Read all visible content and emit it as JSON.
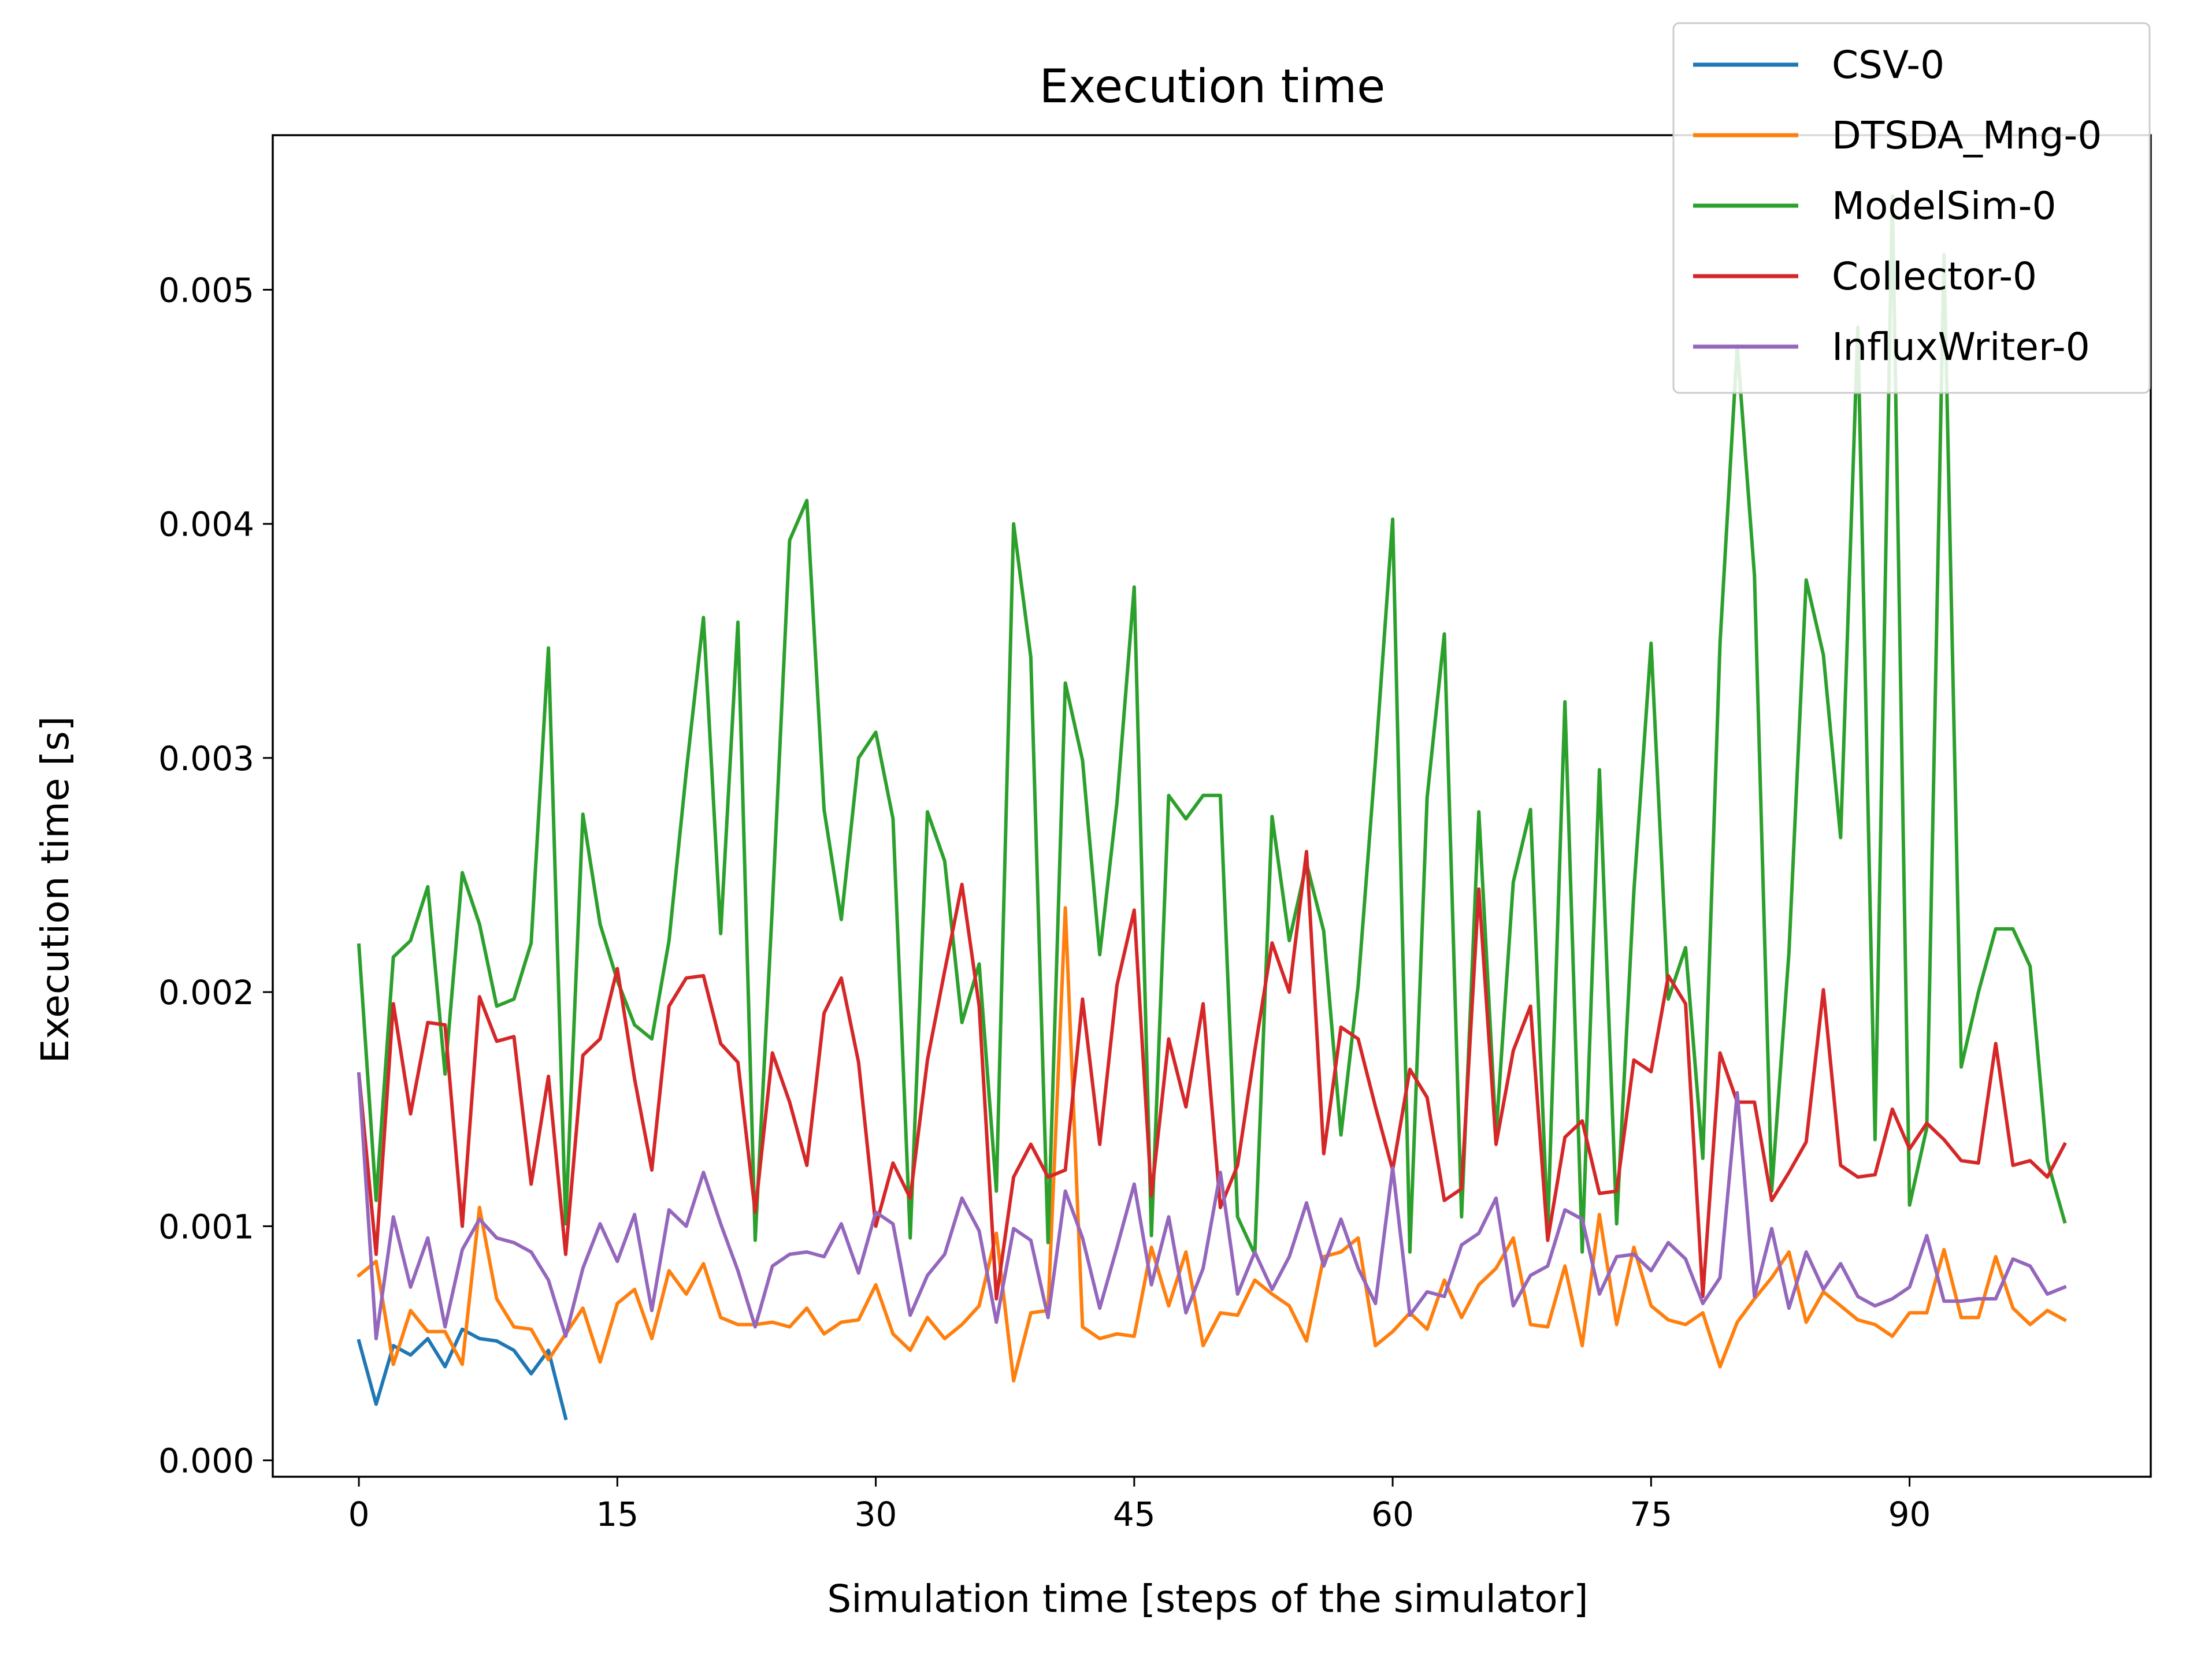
{
  "chart_data": {
    "type": "line",
    "title": "Execution time",
    "xlabel": "Simulation time [steps of the simulator]",
    "ylabel": "Execution time [s]",
    "xlim": [
      -5,
      104
    ],
    "ylim": [
      -7e-05,
      0.00566
    ],
    "xticks": [
      0,
      15,
      30,
      45,
      60,
      75,
      90
    ],
    "xtick_labels": [
      "0",
      "15",
      "30",
      "45",
      "60",
      "75",
      "90"
    ],
    "yticks": [
      0.0,
      0.001,
      0.002,
      0.003,
      0.004,
      0.005
    ],
    "ytick_labels": [
      "0.000",
      "0.001",
      "0.002",
      "0.003",
      "0.004",
      "0.005"
    ],
    "grid": false,
    "legend_position": "top-right",
    "series": [
      {
        "name": "CSV-0",
        "color": "#1f77b4",
        "values": [
          0.00051,
          0.00024,
          0.00049,
          0.00045,
          0.00052,
          0.0004,
          0.00056,
          0.00052,
          0.00051,
          0.00047,
          0.00037,
          0.00047,
          0.00018
        ]
      },
      {
        "name": "DTSDA_Mng-0",
        "color": "#ff7f0e",
        "values": [
          0.00079,
          0.00085,
          0.00041,
          0.00064,
          0.00055,
          0.00055,
          0.00041,
          0.00108,
          0.00069,
          0.00057,
          0.00056,
          0.00043,
          0.00054,
          0.00065,
          0.00042,
          0.00067,
          0.00073,
          0.00052,
          0.00081,
          0.00071,
          0.00084,
          0.00061,
          0.00058,
          0.00058,
          0.00059,
          0.00057,
          0.00065,
          0.00054,
          0.00059,
          0.0006,
          0.00075,
          0.00054,
          0.00047,
          0.00061,
          0.00052,
          0.00058,
          0.00066,
          0.00097,
          0.00034,
          0.00063,
          0.00064,
          0.00236,
          0.00057,
          0.00052,
          0.00054,
          0.00053,
          0.00091,
          0.00066,
          0.00089,
          0.00049,
          0.00063,
          0.00062,
          0.00077,
          0.00071,
          0.00066,
          0.00051,
          0.00087,
          0.00089,
          0.00095,
          0.00049,
          0.00055,
          0.00063,
          0.00056,
          0.00077,
          0.00061,
          0.00075,
          0.00082,
          0.00095,
          0.00058,
          0.00057,
          0.00083,
          0.00049,
          0.00105,
          0.00058,
          0.00091,
          0.00066,
          0.0006,
          0.00058,
          0.00063,
          0.0004,
          0.00059,
          0.00069,
          0.00078,
          0.00089,
          0.00059,
          0.00072,
          0.00066,
          0.0006,
          0.00058,
          0.00053,
          0.00063,
          0.00063,
          0.0009,
          0.00061,
          0.00061,
          0.00087,
          0.00065,
          0.00058,
          0.00064,
          0.0006
        ]
      },
      {
        "name": "ModelSim-0",
        "color": "#2ca02c",
        "values": [
          0.0022,
          0.00111,
          0.00215,
          0.00222,
          0.00245,
          0.00165,
          0.00251,
          0.00229,
          0.00194,
          0.00197,
          0.00221,
          0.00347,
          0.00101,
          0.00276,
          0.00229,
          0.00205,
          0.00186,
          0.0018,
          0.00222,
          0.00294,
          0.0036,
          0.00225,
          0.00358,
          0.00094,
          0.00237,
          0.00393,
          0.0041,
          0.00278,
          0.00231,
          0.003,
          0.00311,
          0.00274,
          0.00095,
          0.00277,
          0.00256,
          0.00187,
          0.00212,
          0.00115,
          0.004,
          0.00343,
          0.00093,
          0.00332,
          0.00299,
          0.00216,
          0.00281,
          0.00373,
          0.00096,
          0.00284,
          0.00274,
          0.00284,
          0.00284,
          0.00104,
          0.00088,
          0.00275,
          0.00222,
          0.00255,
          0.00226,
          0.00139,
          0.00203,
          0.00299,
          0.00402,
          0.00089,
          0.00283,
          0.00353,
          0.00104,
          0.00277,
          0.00139,
          0.00247,
          0.00278,
          0.00098,
          0.00324,
          0.00089,
          0.00295,
          0.00101,
          0.00243,
          0.00349,
          0.00197,
          0.00219,
          0.00129,
          0.00349,
          0.00476,
          0.00378,
          0.00115,
          0.00217,
          0.00376,
          0.00344,
          0.00266,
          0.00484,
          0.00137,
          0.0054,
          0.00109,
          0.00142,
          0.00515,
          0.00168,
          0.002,
          0.00227,
          0.00227,
          0.00211,
          0.00128,
          0.00102
        ]
      },
      {
        "name": "Collector-0",
        "color": "#d62728",
        "values": [
          0.00165,
          0.00088,
          0.00195,
          0.00148,
          0.00187,
          0.00186,
          0.001,
          0.00198,
          0.00179,
          0.00181,
          0.00118,
          0.00164,
          0.00088,
          0.00173,
          0.0018,
          0.0021,
          0.00163,
          0.00124,
          0.00194,
          0.00206,
          0.00207,
          0.00178,
          0.0017,
          0.00106,
          0.00174,
          0.00153,
          0.00126,
          0.00191,
          0.00206,
          0.0017,
          0.001,
          0.00127,
          0.00112,
          0.00171,
          0.00209,
          0.00246,
          0.00194,
          0.00069,
          0.00121,
          0.00135,
          0.00121,
          0.00124,
          0.00197,
          0.00135,
          0.00203,
          0.00235,
          0.00113,
          0.0018,
          0.00151,
          0.00195,
          0.00108,
          0.00126,
          0.00175,
          0.00221,
          0.002,
          0.0026,
          0.00131,
          0.00185,
          0.0018,
          0.00151,
          0.00124,
          0.00167,
          0.00155,
          0.00111,
          0.00116,
          0.00244,
          0.00135,
          0.00175,
          0.00194,
          0.00094,
          0.00138,
          0.00145,
          0.00114,
          0.00115,
          0.00171,
          0.00166,
          0.00207,
          0.00195,
          0.0007,
          0.00174,
          0.00153,
          0.00153,
          0.00111,
          0.00123,
          0.00136,
          0.00201,
          0.00126,
          0.00121,
          0.00122,
          0.0015,
          0.00133,
          0.00144,
          0.00137,
          0.00128,
          0.00127,
          0.00178,
          0.00126,
          0.00128,
          0.00121,
          0.00135
        ]
      },
      {
        "name": "InfluxWriter-0",
        "color": "#9467bd",
        "values": [
          0.00165,
          0.00052,
          0.00104,
          0.00074,
          0.00095,
          0.00057,
          0.0009,
          0.00103,
          0.00095,
          0.00093,
          0.00089,
          0.00077,
          0.00053,
          0.00082,
          0.00101,
          0.00085,
          0.00105,
          0.00064,
          0.00107,
          0.001,
          0.00123,
          0.00101,
          0.00081,
          0.00057,
          0.00083,
          0.00088,
          0.00089,
          0.00087,
          0.00101,
          0.0008,
          0.00106,
          0.00101,
          0.00062,
          0.00079,
          0.00088,
          0.00112,
          0.00098,
          0.00059,
          0.00099,
          0.00094,
          0.00061,
          0.00115,
          0.00095,
          0.00065,
          0.00091,
          0.00118,
          0.00075,
          0.00104,
          0.00063,
          0.00082,
          0.00123,
          0.00071,
          0.00089,
          0.00073,
          0.00087,
          0.0011,
          0.00083,
          0.00103,
          0.00082,
          0.00067,
          0.00125,
          0.00062,
          0.00072,
          0.0007,
          0.00092,
          0.00097,
          0.00112,
          0.00066,
          0.00079,
          0.00083,
          0.00107,
          0.00103,
          0.00071,
          0.00087,
          0.00088,
          0.00081,
          0.00093,
          0.00086,
          0.00067,
          0.00078,
          0.00157,
          0.0007,
          0.00099,
          0.00065,
          0.00089,
          0.00073,
          0.00084,
          0.0007,
          0.00066,
          0.00069,
          0.00074,
          0.00096,
          0.00068,
          0.00068,
          0.00069,
          0.00069,
          0.00086,
          0.00083,
          0.00071,
          0.00074
        ]
      }
    ]
  }
}
